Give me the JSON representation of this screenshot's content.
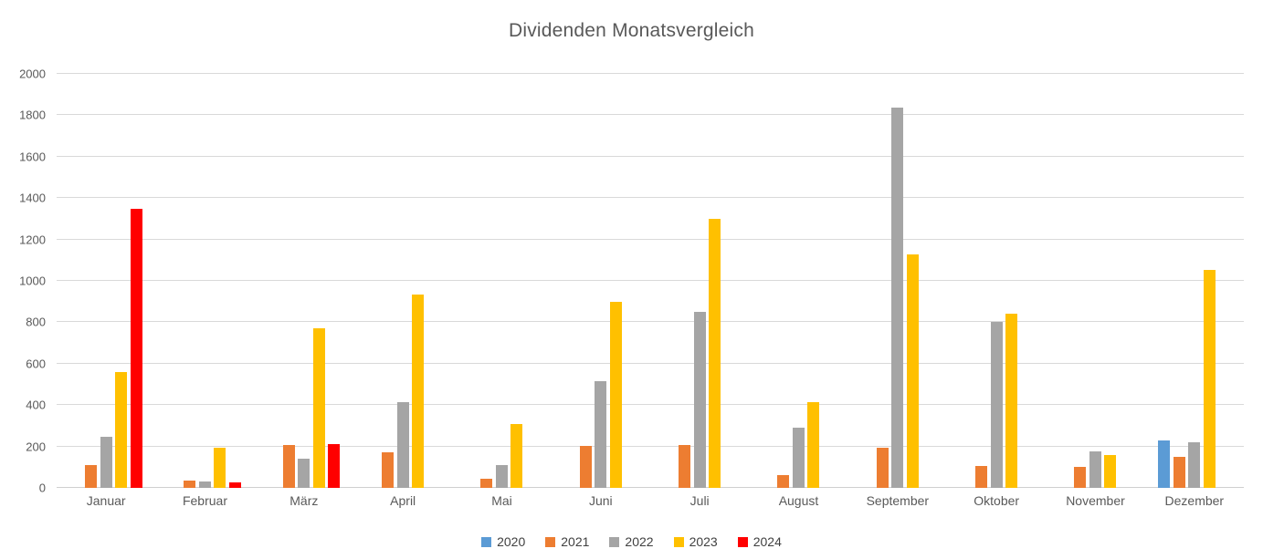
{
  "chart_data": {
    "type": "bar",
    "title": "Dividenden Monatsvergleich",
    "categories": [
      "Januar",
      "Februar",
      "März",
      "April",
      "Mai",
      "Juni",
      "Juli",
      "August",
      "September",
      "Oktober",
      "November",
      "Dezember"
    ],
    "series": [
      {
        "name": "2020",
        "color": "#5B9BD5",
        "values": [
          0,
          0,
          0,
          0,
          0,
          0,
          0,
          0,
          0,
          0,
          0,
          230
        ]
      },
      {
        "name": "2021",
        "color": "#ED7D31",
        "values": [
          110,
          37,
          207,
          170,
          45,
          203,
          205,
          60,
          195,
          105,
          100,
          150
        ]
      },
      {
        "name": "2022",
        "color": "#A5A5A5",
        "values": [
          245,
          30,
          140,
          415,
          110,
          515,
          850,
          290,
          1835,
          800,
          178,
          220
        ]
      },
      {
        "name": "2023",
        "color": "#FFC000",
        "values": [
          560,
          195,
          770,
          935,
          310,
          900,
          1300,
          415,
          1130,
          840,
          160,
          1055
        ]
      },
      {
        "name": "2024",
        "color": "#FF0000",
        "values": [
          1350,
          25,
          213,
          0,
          0,
          0,
          0,
          0,
          0,
          0,
          0,
          0
        ]
      }
    ],
    "ylim": [
      0,
      2000
    ],
    "ytick_step": 200,
    "ytick_labels": [
      "0",
      "200",
      "400",
      "600",
      "800",
      "1000",
      "1200",
      "1400",
      "1600",
      "1800",
      "2000"
    ],
    "grid": "horizontal",
    "legend_position": "bottom"
  },
  "style_colors": {
    "title_text": "#595959",
    "axis_text": "#595959",
    "legend_text": "#404040",
    "gridline": "#D9D9D9",
    "background": "#FFFFFF"
  }
}
